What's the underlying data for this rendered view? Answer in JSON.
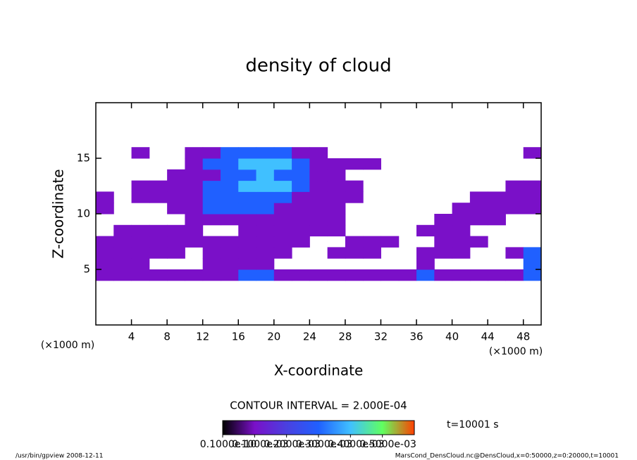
{
  "chart_data": {
    "type": "heatmap",
    "title": "density of cloud",
    "xlabel": "X-coordinate",
    "ylabel": "Z-coordinate",
    "x_unit": "(×1000 m)",
    "y_unit": "(×1000 m)",
    "contour_interval": "CONTOUR INTERVAL = 2.000E-04",
    "time_label": "t=10001 s",
    "footer_left": "/usr/bin/gpview  2008-12-11",
    "footer_right": "MarsCond_DensCloud.nc@DensCloud,x=0:50000,z=0:20000,t=10001",
    "xlim": [
      0,
      50
    ],
    "ylim": [
      0,
      20
    ],
    "xticks": [
      4,
      8,
      12,
      16,
      20,
      24,
      28,
      32,
      36,
      40,
      44,
      48
    ],
    "yticks": [
      5,
      10,
      15
    ],
    "clim": [
      0,
      0.0006
    ],
    "palette": [
      "#000000",
      "#7a10c8",
      "#4a40e0",
      "#2060ff",
      "#40c0ff",
      "#60ff60",
      "#ff4000"
    ],
    "levels": [
      {
        "value": 1e-11,
        "label": "0.1000e-10"
      },
      {
        "value": 0.0001,
        "label": "0.1000e-03"
      },
      {
        "value": 0.0002,
        "label": "0.2000e-03"
      },
      {
        "value": 0.0003,
        "label": "0.3000e-03"
      },
      {
        "value": 0.0004,
        "label": "0.4000e-03"
      },
      {
        "value": 0.0005,
        "label": "0.5000e-03"
      }
    ],
    "x": [
      1,
      3,
      5,
      7,
      9,
      11,
      13,
      15,
      17,
      19,
      21,
      23,
      25,
      27,
      29,
      31,
      33,
      35,
      37,
      39,
      41,
      43,
      45,
      47,
      49
    ],
    "y": [
      0.5,
      1.5,
      2.5,
      3.5,
      4.5,
      5.5,
      6.5,
      7.5,
      8.5,
      9.5,
      10.5,
      11.5,
      12.5,
      13.5,
      14.5,
      15.5,
      16.5,
      17.5,
      18.5,
      19.5
    ],
    "z": [
      [
        null,
        null,
        null,
        null,
        null,
        null,
        null,
        null,
        null,
        null,
        null,
        null,
        null,
        null,
        null,
        null,
        null,
        null,
        null,
        null,
        null,
        null,
        null,
        null,
        null
      ],
      [
        null,
        null,
        null,
        null,
        null,
        null,
        null,
        null,
        null,
        null,
        null,
        null,
        null,
        null,
        null,
        null,
        null,
        null,
        null,
        null,
        null,
        null,
        null,
        null,
        null
      ],
      [
        null,
        null,
        null,
        null,
        null,
        null,
        null,
        null,
        null,
        null,
        null,
        null,
        null,
        null,
        null,
        null,
        null,
        null,
        null,
        null,
        null,
        null,
        null,
        null,
        null
      ],
      [
        null,
        null,
        null,
        null,
        null,
        null,
        null,
        null,
        null,
        null,
        null,
        null,
        null,
        null,
        null,
        null,
        null,
        null,
        null,
        null,
        null,
        null,
        null,
        null,
        null
      ],
      [
        0.0001,
        0.0001,
        0.0001,
        0.0001,
        0.0001,
        0.0001,
        0.0001,
        0.0001,
        0.0003,
        0.0003,
        0.0001,
        0.0001,
        0.0001,
        0.0001,
        0.0001,
        0.0001,
        0.0001,
        0.0001,
        0.0003,
        0.0001,
        0.0001,
        0.0001,
        0.0001,
        0.0001,
        0.0003
      ],
      [
        0.0001,
        0.0001,
        0.0001,
        null,
        null,
        null,
        0.0001,
        0.0001,
        0.0001,
        0.0001,
        null,
        null,
        null,
        null,
        null,
        null,
        null,
        null,
        0.0001,
        null,
        null,
        null,
        null,
        null,
        0.0003
      ],
      [
        0.0001,
        0.0001,
        0.0001,
        0.0001,
        0.0001,
        null,
        0.0001,
        0.0001,
        0.0001,
        0.0001,
        0.0001,
        null,
        null,
        0.0001,
        0.0001,
        0.0001,
        null,
        null,
        0.0001,
        0.0001,
        0.0001,
        null,
        null,
        0.0001,
        0.0003
      ],
      [
        0.0001,
        0.0001,
        0.0001,
        0.0001,
        0.0001,
        0.0001,
        0.0001,
        0.0001,
        0.0001,
        0.0001,
        0.0001,
        0.0001,
        null,
        null,
        0.0001,
        0.0001,
        0.0001,
        null,
        null,
        0.0001,
        0.0001,
        0.0001,
        null,
        null,
        null
      ],
      [
        null,
        0.0001,
        0.0001,
        0.0001,
        0.0001,
        0.0001,
        null,
        null,
        0.0001,
        0.0001,
        0.0001,
        0.0001,
        0.0001,
        0.0001,
        null,
        null,
        null,
        null,
        0.0001,
        0.0001,
        0.0001,
        null,
        null,
        null,
        null
      ],
      [
        null,
        null,
        null,
        null,
        null,
        0.0001,
        0.0001,
        0.0001,
        0.0001,
        0.0001,
        0.0001,
        0.0001,
        0.0001,
        0.0001,
        null,
        null,
        null,
        null,
        null,
        0.0001,
        0.0001,
        0.0001,
        0.0001,
        null,
        null
      ],
      [
        0.0001,
        null,
        null,
        null,
        0.0001,
        0.0001,
        0.0003,
        0.0003,
        0.0003,
        0.0003,
        0.0001,
        0.0001,
        0.0001,
        0.0001,
        null,
        null,
        null,
        null,
        null,
        null,
        0.0001,
        0.0001,
        0.0001,
        0.0001,
        0.0001
      ],
      [
        0.0001,
        null,
        0.0001,
        0.0001,
        0.0001,
        0.0001,
        0.0003,
        0.0003,
        0.0003,
        0.0003,
        0.0003,
        0.0001,
        0.0001,
        0.0001,
        0.0001,
        null,
        null,
        null,
        null,
        null,
        null,
        0.0001,
        0.0001,
        0.0001,
        0.0001
      ],
      [
        null,
        null,
        0.0001,
        0.0001,
        0.0001,
        0.0001,
        0.0003,
        0.0003,
        0.0004,
        0.0004,
        0.0004,
        0.0003,
        0.0001,
        0.0001,
        0.0001,
        null,
        null,
        null,
        null,
        null,
        null,
        null,
        null,
        0.0001,
        0.0001
      ],
      [
        null,
        null,
        null,
        null,
        0.0001,
        0.0001,
        0.0001,
        0.0003,
        0.0003,
        0.0004,
        0.0003,
        0.0003,
        0.0001,
        0.0001,
        null,
        null,
        null,
        null,
        null,
        null,
        null,
        null,
        null,
        null,
        null
      ],
      [
        null,
        null,
        null,
        null,
        null,
        0.0001,
        0.0003,
        0.0003,
        0.0004,
        0.0004,
        0.0004,
        0.0003,
        0.0001,
        0.0001,
        0.0001,
        0.0001,
        null,
        null,
        null,
        null,
        null,
        null,
        null,
        null,
        null
      ],
      [
        null,
        null,
        0.0001,
        null,
        null,
        0.0001,
        0.0001,
        0.0003,
        0.0003,
        0.0003,
        0.0003,
        0.0001,
        0.0001,
        null,
        null,
        null,
        null,
        null,
        null,
        null,
        null,
        null,
        null,
        null,
        0.0001
      ],
      [
        null,
        null,
        null,
        null,
        null,
        null,
        null,
        null,
        null,
        null,
        null,
        null,
        null,
        null,
        null,
        null,
        null,
        null,
        null,
        null,
        null,
        null,
        null,
        null,
        null
      ],
      [
        null,
        null,
        null,
        null,
        null,
        null,
        null,
        null,
        null,
        null,
        null,
        null,
        null,
        null,
        null,
        null,
        null,
        null,
        null,
        null,
        null,
        null,
        null,
        null,
        null
      ],
      [
        null,
        null,
        null,
        null,
        null,
        null,
        null,
        null,
        null,
        null,
        null,
        null,
        null,
        null,
        null,
        null,
        null,
        null,
        null,
        null,
        null,
        null,
        null,
        null,
        null
      ],
      [
        null,
        null,
        null,
        null,
        null,
        null,
        null,
        null,
        null,
        null,
        null,
        null,
        null,
        null,
        null,
        null,
        null,
        null,
        null,
        null,
        null,
        null,
        null,
        null,
        null
      ]
    ]
  }
}
